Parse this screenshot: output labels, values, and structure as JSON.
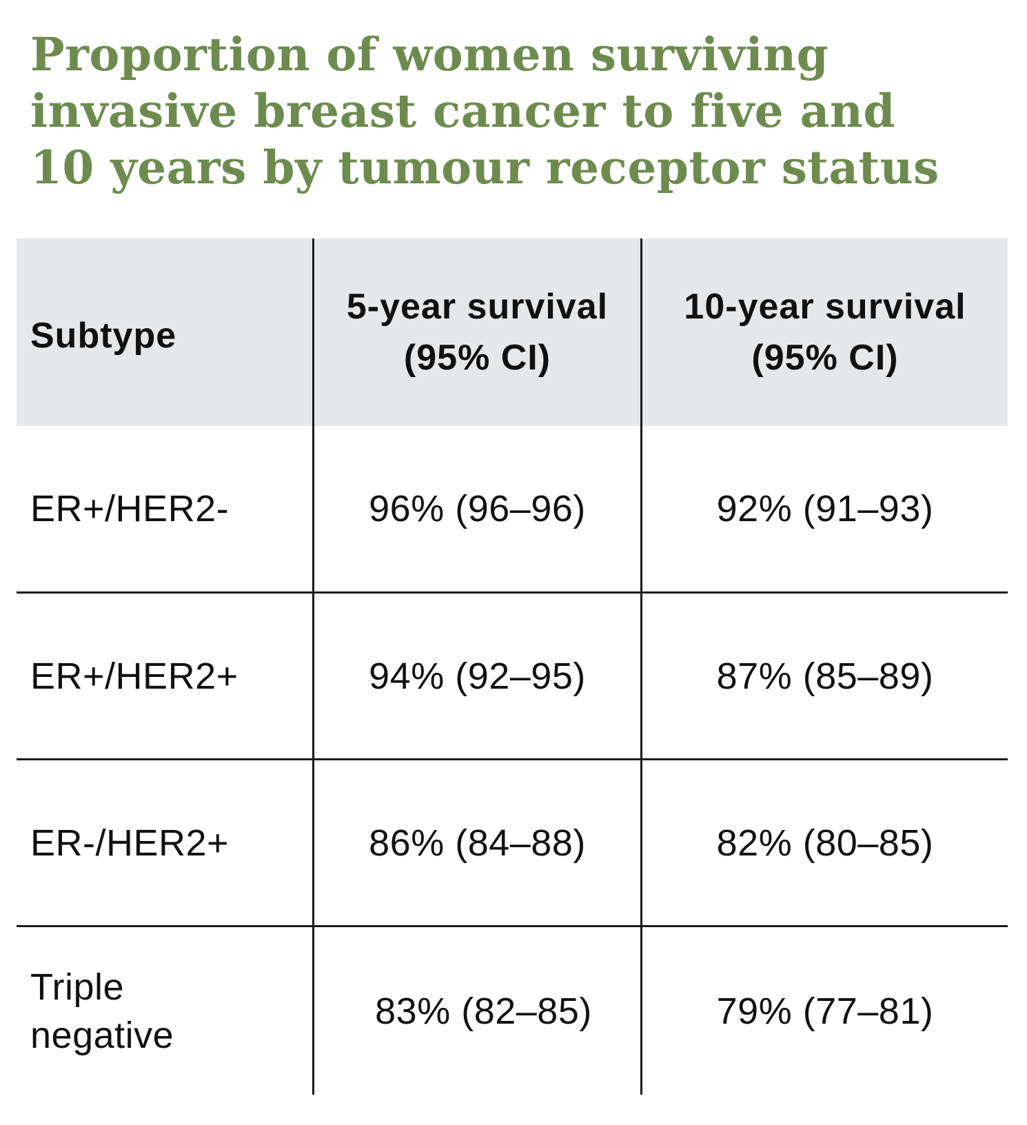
{
  "colors": {
    "title": "#6d8b4e",
    "header_bg": "#e6e7e8",
    "text": "#111111",
    "rule": "#1a1a1a"
  },
  "chart_data": {
    "type": "table",
    "title_lines": [
      "Proportion of women surviving",
      "invasive breast cancer to five and",
      "10 years by tumour receptor status"
    ],
    "columns": {
      "subtype": "Subtype",
      "five_year": [
        "5-year survival",
        "(95% CI)"
      ],
      "ten_year": [
        "10-year survival",
        "(95% CI)"
      ]
    },
    "rows": [
      {
        "subtype": [
          "ER+/HER2-"
        ],
        "five_year": "96% (96–96)",
        "ten_year": "92% (91–93)"
      },
      {
        "subtype": [
          "ER+/HER2+"
        ],
        "five_year": "94% (92–95)",
        "ten_year": "87% (85–89)"
      },
      {
        "subtype": [
          "ER-/HER2+"
        ],
        "five_year": "86% (84–88)",
        "ten_year": "82% (80–85)"
      },
      {
        "subtype": [
          "Triple",
          "negative"
        ],
        "five_year": "83% (82–85)",
        "ten_year": "79% (77–81)"
      }
    ]
  }
}
